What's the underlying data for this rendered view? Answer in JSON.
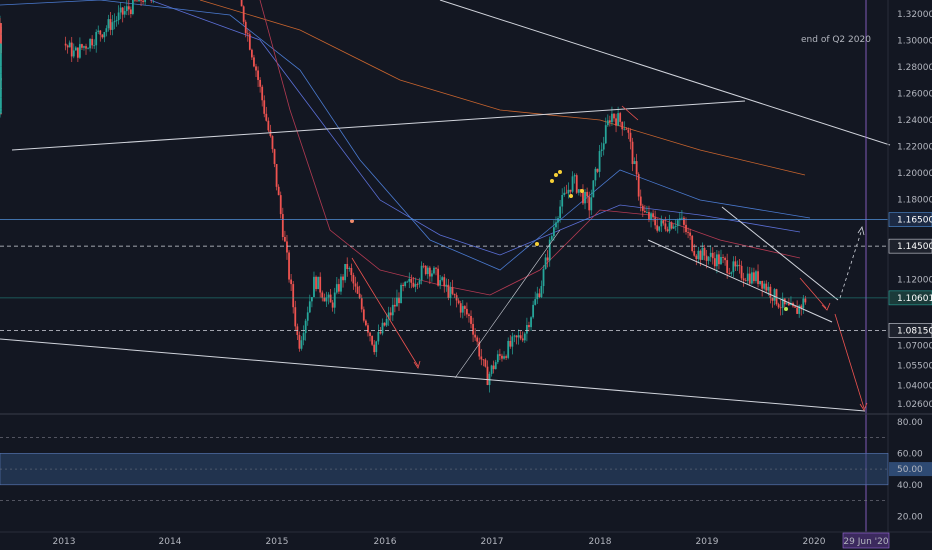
{
  "chart_data": {
    "type": "candlestick",
    "title": "",
    "price_axis": {
      "ticks": [
        "1.32000",
        "1.30000",
        "1.28000",
        "1.26000",
        "1.24000",
        "1.22000",
        "1.20000",
        "1.18000",
        "1.16500",
        "1.14500",
        "1.12000",
        "1.10601",
        "1.08150",
        "1.07000",
        "1.05500",
        "1.04000",
        "1.02600"
      ],
      "range": [
        1.0,
        1.335
      ]
    },
    "time_axis": {
      "ticks": [
        "2013",
        "2014",
        "2015",
        "2016",
        "2017",
        "2018",
        "2019",
        "2020"
      ],
      "cursor_label": "29 Jun '20"
    },
    "levels": [
      {
        "label": "1.16500",
        "value": 1.165,
        "style": "solid",
        "color": "#4f8fd8"
      },
      {
        "label": "1.14500",
        "value": 1.145,
        "style": "dashed",
        "color": "#d1d4dc"
      },
      {
        "label": "1.10601",
        "value": 1.10601,
        "style": "solid",
        "color": "#26a69a",
        "note": "last price"
      },
      {
        "label": "1.08150",
        "value": 1.0815,
        "style": "dashed",
        "color": "#d1d4dc"
      }
    ],
    "annotations": [
      {
        "text": "end of Q2 2020"
      }
    ],
    "rsi": {
      "ticks": [
        "80.00",
        "60.00",
        "50.00",
        "40.00",
        "20.00"
      ],
      "band": [
        40,
        60
      ],
      "current_label": "50.00",
      "range": [
        10,
        85
      ]
    },
    "grid": false,
    "colors": {
      "background": "#131722",
      "up": "#26a69a",
      "down": "#ef5350",
      "rsi_line": "#8aa2c8",
      "band": "#2e4a73",
      "trendline": "#d1d4dc",
      "dot_yellow": "#f7d036",
      "dot_green": "#b5e853",
      "dot_red": "#f08a6b"
    }
  }
}
